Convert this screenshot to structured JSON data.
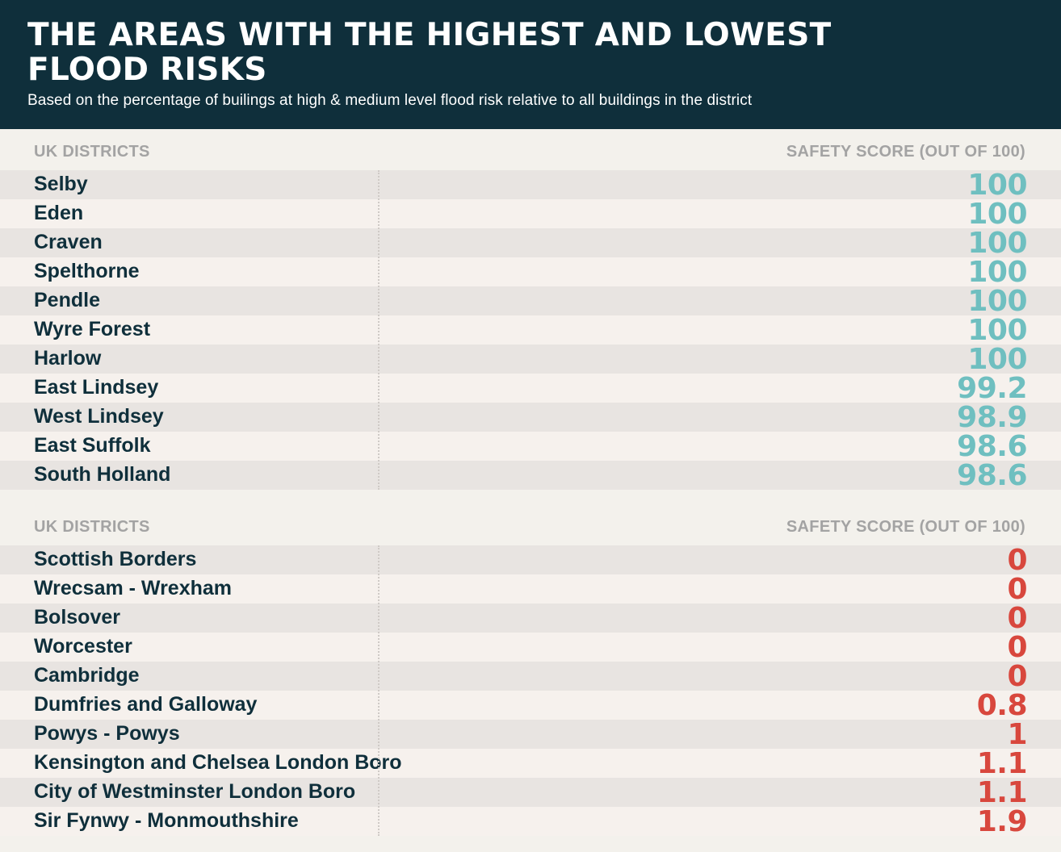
{
  "header": {
    "title": "THE AREAS WITH THE HIGHEST AND LOWEST FLOOD RISKS",
    "subtitle": "Based on the percentage of builings at high & medium level flood risk relative to all buildings in the district"
  },
  "colors": {
    "header_bg": "#0f2f3b",
    "high_score": "#6fbfc0",
    "low_score": "#d8473d",
    "column_header": "#a3a3a3",
    "row_shade": "#e8e4e1"
  },
  "chart_data": [
    {
      "type": "table",
      "columns": [
        "UK DISTRICTS",
        "SAFETY SCORE (OUT OF 100)"
      ],
      "rows": [
        {
          "district": "Selby",
          "score": "100"
        },
        {
          "district": "Eden",
          "score": "100"
        },
        {
          "district": "Craven",
          "score": "100"
        },
        {
          "district": "Spelthorne",
          "score": "100"
        },
        {
          "district": "Pendle",
          "score": "100"
        },
        {
          "district": "Wyre Forest",
          "score": "100"
        },
        {
          "district": "Harlow",
          "score": "100"
        },
        {
          "district": "East Lindsey",
          "score": "99.2"
        },
        {
          "district": "West Lindsey",
          "score": "98.9"
        },
        {
          "district": "East Suffolk",
          "score": "98.6"
        },
        {
          "district": "South Holland",
          "score": "98.6"
        }
      ]
    },
    {
      "type": "table",
      "columns": [
        "UK DISTRICTS",
        "SAFETY SCORE (OUT OF 100)"
      ],
      "rows": [
        {
          "district": "Scottish Borders",
          "score": "0"
        },
        {
          "district": "Wrecsam - Wrexham",
          "score": "0"
        },
        {
          "district": "Bolsover",
          "score": "0"
        },
        {
          "district": "Worcester",
          "score": "0"
        },
        {
          "district": "Cambridge",
          "score": "0"
        },
        {
          "district": "Dumfries and Galloway",
          "score": "0.8"
        },
        {
          "district": "Powys - Powys",
          "score": "1"
        },
        {
          "district": "Kensington and Chelsea London Boro",
          "score": "1.1"
        },
        {
          "district": "City of Westminster London Boro",
          "score": "1.1"
        },
        {
          "district": "Sir Fynwy - Monmouthshire",
          "score": "1.9"
        }
      ]
    }
  ]
}
